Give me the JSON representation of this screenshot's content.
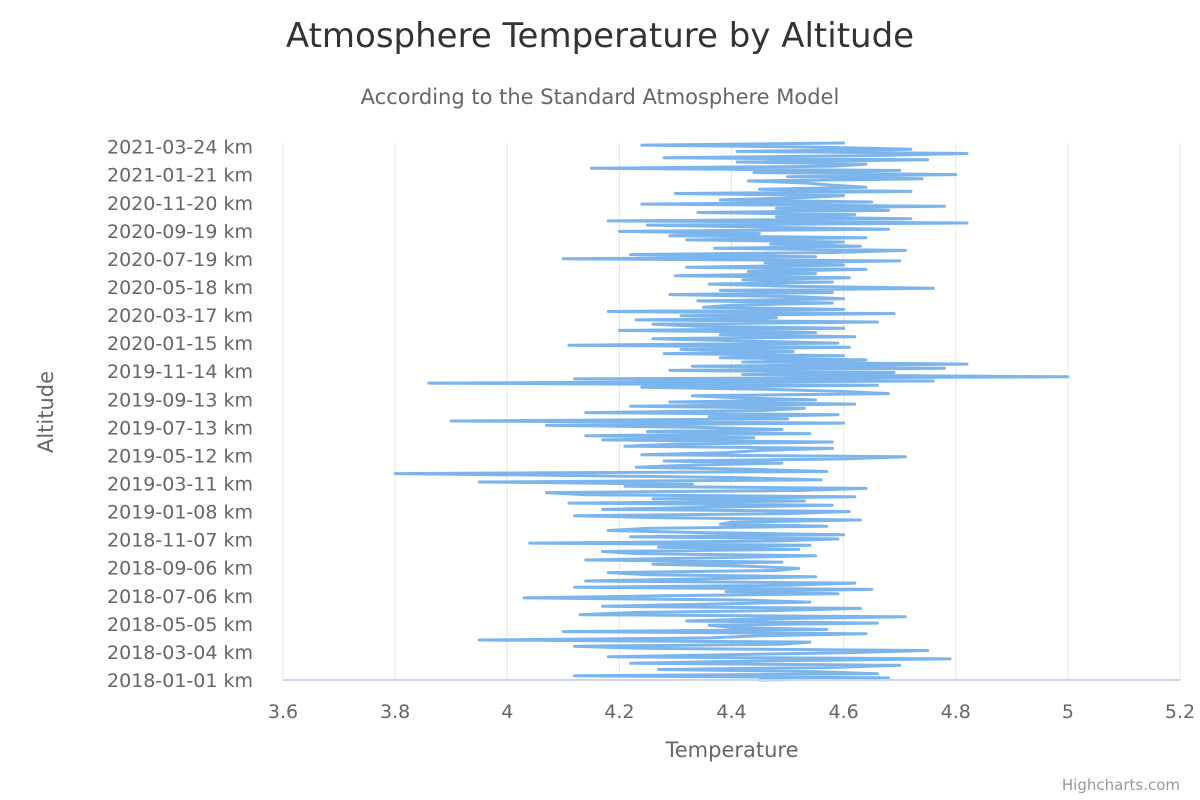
{
  "chart_data": {
    "type": "line",
    "title": "Atmosphere Temperature by Altitude",
    "subtitle": "According to the Standard Atmosphere Model",
    "xlabel": "Temperature",
    "ylabel": "Altitude",
    "xlim": [
      3.6,
      5.2
    ],
    "x_ticks": [
      "3.6",
      "3.8",
      "4",
      "4.2",
      "4.4",
      "4.6",
      "4.8",
      "5",
      "5.2"
    ],
    "y_tick_labels": [
      "2018-01-01 km",
      "2018-03-04 km",
      "2018-05-05 km",
      "2018-07-06 km",
      "2018-09-06 km",
      "2018-11-07 km",
      "2019-01-08 km",
      "2019-03-11 km",
      "2019-05-12 km",
      "2019-07-13 km",
      "2019-09-13 km",
      "2019-11-14 km",
      "2020-01-15 km",
      "2020-03-17 km",
      "2020-05-18 km",
      "2020-07-19 km",
      "2020-09-19 km",
      "2020-11-20 km",
      "2021-01-21 km",
      "2021-03-24 km"
    ],
    "ylim": [
      "2018-01-01",
      "2021-04-01"
    ],
    "grid": true,
    "legend": "none",
    "color": "#7cb5ec",
    "series": [
      {
        "y_start": "2018-01-01",
        "y_end": "2021-04-01",
        "values": [
          4.45,
          4.68,
          4.12,
          4.66,
          4.55,
          4.27,
          4.58,
          4.7,
          4.22,
          4.44,
          4.79,
          4.18,
          4.39,
          4.61,
          4.75,
          4.25,
          4.12,
          4.49,
          4.54,
          3.95,
          4.36,
          4.45,
          4.64,
          4.1,
          4.57,
          4.4,
          4.36,
          4.66,
          4.32,
          4.45,
          4.71,
          4.13,
          4.22,
          4.48,
          4.63,
          4.17,
          4.35,
          4.54,
          4.42,
          4.03,
          4.28,
          4.59,
          4.39,
          4.65,
          4.12,
          4.5,
          4.62,
          4.14,
          4.34,
          4.55,
          4.25,
          4.18,
          4.48,
          4.52,
          4.43,
          4.26,
          4.49,
          4.14,
          4.36,
          4.55,
          4.23,
          4.17,
          4.52,
          4.27,
          4.54,
          4.04,
          4.48,
          4.59,
          4.22,
          4.6,
          4.35,
          4.18,
          4.25,
          4.57,
          4.38,
          4.4,
          4.63,
          4.28,
          4.12,
          4.5,
          4.61,
          4.17,
          4.36,
          4.58,
          4.11,
          4.53,
          4.26,
          4.62,
          4.14,
          4.07,
          4.52,
          4.64,
          4.21,
          4.33,
          3.95,
          4.56,
          4.42,
          4.15,
          3.8,
          4.57,
          4.44,
          4.23,
          4.32,
          4.49,
          4.28,
          4.6,
          4.71,
          4.24,
          4.39,
          4.45,
          4.58,
          4.21,
          4.3,
          4.58,
          4.17,
          4.44,
          4.14,
          4.54,
          4.25,
          4.49,
          4.33,
          4.07,
          4.6,
          3.9,
          4.5,
          4.36,
          4.59,
          4.14,
          4.46,
          4.53,
          4.22,
          4.62,
          4.29,
          4.55,
          4.41,
          4.33,
          4.68,
          4.6,
          4.47,
          4.24,
          4.66,
          3.86,
          4.76,
          4.12,
          5.0,
          4.42,
          4.69,
          4.29,
          4.78,
          4.33,
          4.82,
          4.42,
          4.64,
          4.38,
          4.6,
          4.28,
          4.51,
          4.31,
          4.61,
          4.11,
          4.59,
          4.43,
          4.26,
          4.62,
          4.38,
          4.55,
          4.2,
          4.6,
          4.34,
          4.26,
          4.66,
          4.23,
          4.48,
          4.31,
          4.69,
          4.18,
          4.6,
          4.35,
          4.4,
          4.58,
          4.34,
          4.6,
          4.52,
          4.29,
          4.58,
          4.38,
          4.76,
          4.5,
          4.36,
          4.58,
          4.42,
          4.61,
          4.3,
          4.55,
          4.43,
          4.64,
          4.32,
          4.6,
          4.46,
          4.7,
          4.1,
          4.55,
          4.22,
          4.58,
          4.71,
          4.37,
          4.63,
          4.47,
          4.6,
          4.32,
          4.64,
          4.29,
          4.45,
          4.2,
          4.68,
          4.46,
          4.25,
          4.82,
          4.18,
          4.72,
          4.48,
          4.62,
          4.34,
          4.68,
          4.48,
          4.78,
          4.24,
          4.65,
          4.38,
          4.52,
          4.6,
          4.3,
          4.72,
          4.45,
          4.64,
          4.58,
          4.53,
          4.43,
          4.74,
          4.5,
          4.8,
          4.44,
          4.7,
          4.15,
          4.58,
          4.64,
          4.41,
          4.75,
          4.28,
          4.65,
          4.82,
          4.41,
          4.72,
          4.56,
          4.24,
          4.6
        ]
      }
    ]
  },
  "credits": "Highcharts.com"
}
